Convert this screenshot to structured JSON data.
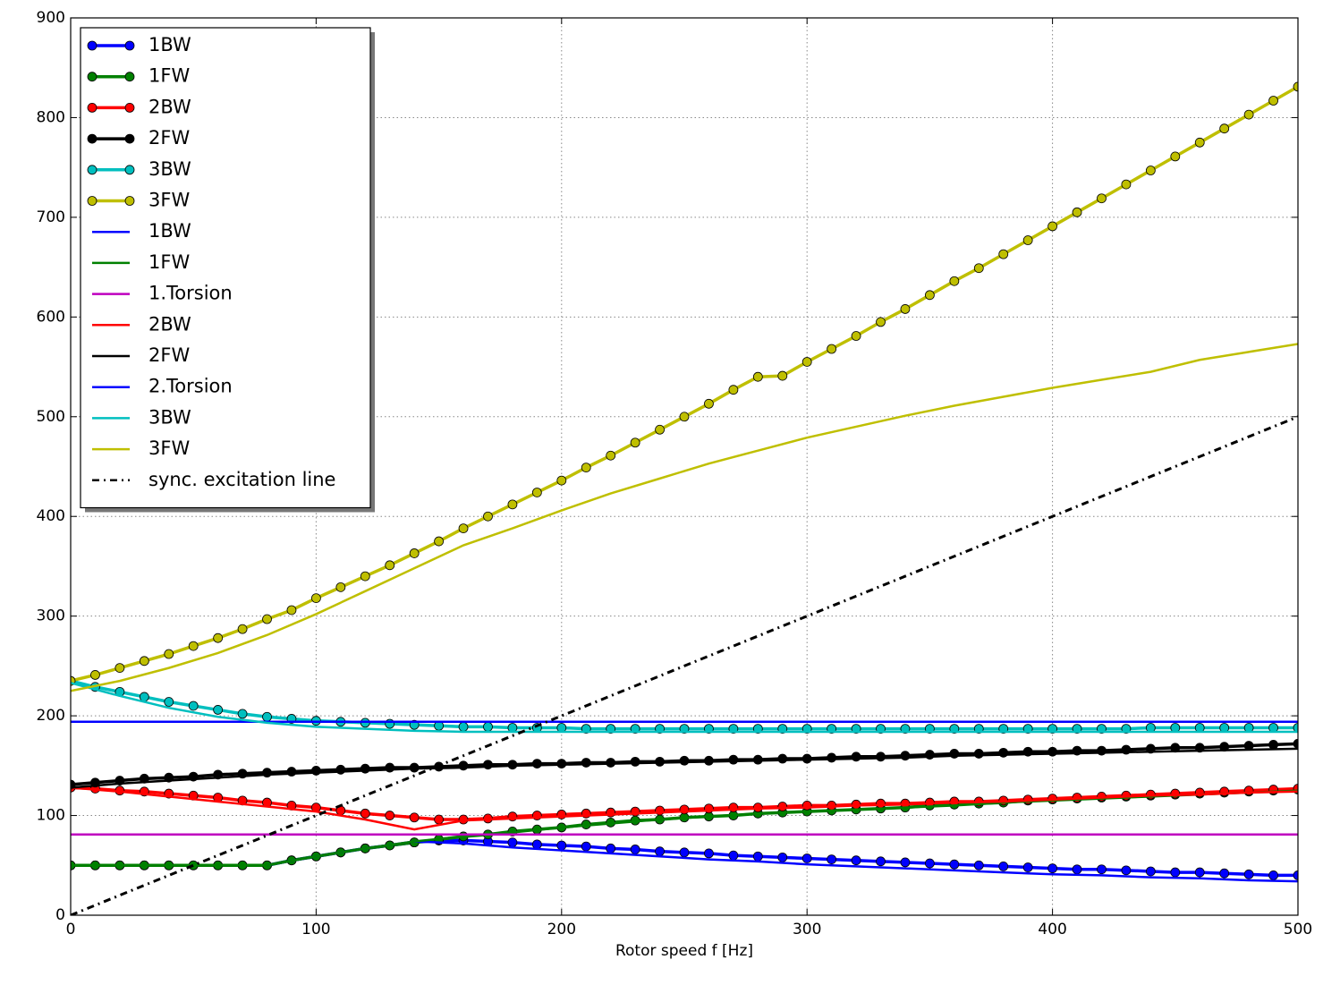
{
  "chart_data": {
    "type": "line",
    "xlabel": "Rotor speed f [Hz]",
    "xlim": [
      0,
      500
    ],
    "ylim": [
      0,
      900
    ],
    "xticks": [
      0,
      100,
      200,
      300,
      400,
      500
    ],
    "yticks": [
      0,
      100,
      200,
      300,
      400,
      500,
      600,
      700,
      800,
      900
    ],
    "grid": true,
    "legend": "upper left",
    "series": [
      {
        "name": "1BW",
        "color": "#0000ff",
        "marker": true,
        "x": [
          0,
          10,
          20,
          30,
          40,
          50,
          60,
          70,
          80,
          90,
          100,
          110,
          120,
          130,
          140,
          150,
          160,
          170,
          180,
          190,
          200,
          210,
          220,
          230,
          240,
          250,
          260,
          270,
          280,
          290,
          300,
          310,
          320,
          330,
          340,
          350,
          360,
          370,
          380,
          390,
          400,
          410,
          420,
          430,
          440,
          450,
          460,
          470,
          480,
          490,
          500
        ],
        "values": [
          50,
          50,
          50,
          50,
          50,
          50,
          50,
          50,
          50,
          55,
          59,
          63,
          67,
          70,
          73,
          75,
          75,
          74,
          73,
          71,
          70,
          69,
          67,
          66,
          64,
          63,
          62,
          60,
          59,
          58,
          57,
          56,
          55,
          54,
          53,
          52,
          51,
          50,
          49,
          48,
          47,
          46,
          46,
          45,
          44,
          43,
          43,
          42,
          41,
          40,
          40
        ]
      },
      {
        "name": "1FW",
        "color": "#008000",
        "marker": true,
        "x": [
          0,
          10,
          20,
          30,
          40,
          50,
          60,
          70,
          80,
          90,
          100,
          110,
          120,
          130,
          140,
          150,
          160,
          170,
          180,
          190,
          200,
          210,
          220,
          230,
          240,
          250,
          260,
          270,
          280,
          290,
          300,
          310,
          320,
          330,
          340,
          350,
          360,
          370,
          380,
          390,
          400,
          410,
          420,
          430,
          440,
          450,
          460,
          470,
          480,
          490,
          500
        ],
        "values": [
          50,
          50,
          50,
          50,
          50,
          50,
          50,
          50,
          50,
          55,
          59,
          63,
          67,
          70,
          73,
          76,
          79,
          81,
          84,
          86,
          88,
          91,
          93,
          95,
          96,
          98,
          99,
          100,
          102,
          103,
          104,
          105,
          106,
          107,
          108,
          110,
          111,
          112,
          113,
          115,
          116,
          117,
          118,
          119,
          120,
          121,
          122,
          123,
          124,
          125,
          126
        ]
      },
      {
        "name": "2BW",
        "color": "#ff0000",
        "marker": true,
        "x": [
          0,
          10,
          20,
          30,
          40,
          50,
          60,
          70,
          80,
          90,
          100,
          110,
          120,
          130,
          140,
          150,
          160,
          170,
          180,
          190,
          200,
          210,
          220,
          230,
          240,
          250,
          260,
          270,
          280,
          290,
          300,
          310,
          320,
          330,
          340,
          350,
          360,
          370,
          380,
          390,
          400,
          410,
          420,
          430,
          440,
          450,
          460,
          470,
          480,
          490,
          500
        ],
        "values": [
          128,
          127,
          125,
          124,
          122,
          120,
          118,
          115,
          113,
          110,
          108,
          105,
          102,
          100,
          98,
          96,
          96,
          97,
          99,
          100,
          101,
          102,
          103,
          104,
          105,
          106,
          107,
          108,
          108,
          109,
          110,
          110,
          111,
          112,
          112,
          113,
          114,
          114,
          115,
          116,
          117,
          118,
          119,
          120,
          121,
          122,
          123,
          124,
          125,
          126,
          127
        ]
      },
      {
        "name": "2FW",
        "color": "#000000",
        "marker": true,
        "x": [
          0,
          10,
          20,
          30,
          40,
          50,
          60,
          70,
          80,
          90,
          100,
          110,
          120,
          130,
          140,
          150,
          160,
          170,
          180,
          190,
          200,
          210,
          220,
          230,
          240,
          250,
          260,
          270,
          280,
          290,
          300,
          310,
          320,
          330,
          340,
          350,
          360,
          370,
          380,
          390,
          400,
          410,
          420,
          430,
          440,
          450,
          460,
          470,
          480,
          490,
          500
        ],
        "values": [
          131,
          133,
          135,
          137,
          138,
          139,
          141,
          142,
          143,
          144,
          145,
          146,
          147,
          148,
          148,
          149,
          150,
          151,
          151,
          152,
          152,
          153,
          153,
          154,
          154,
          155,
          155,
          156,
          156,
          157,
          157,
          158,
          159,
          159,
          160,
          161,
          162,
          162,
          163,
          164,
          164,
          165,
          165,
          166,
          167,
          168,
          168,
          169,
          170,
          171,
          172
        ]
      },
      {
        "name": "3BW",
        "color": "#00bfbf",
        "marker": true,
        "x": [
          0,
          10,
          20,
          30,
          40,
          50,
          60,
          70,
          80,
          90,
          100,
          110,
          120,
          130,
          140,
          150,
          160,
          170,
          180,
          190,
          200,
          210,
          220,
          230,
          240,
          250,
          260,
          270,
          280,
          290,
          300,
          310,
          320,
          330,
          340,
          350,
          360,
          370,
          380,
          390,
          400,
          410,
          420,
          430,
          440,
          450,
          460,
          470,
          480,
          490,
          500
        ],
        "values": [
          235,
          229,
          224,
          219,
          214,
          210,
          206,
          202,
          199,
          197,
          195,
          194,
          193,
          192,
          191,
          190,
          189,
          189,
          188,
          188,
          188,
          187,
          187,
          187,
          187,
          187,
          187,
          187,
          187,
          187,
          187,
          187,
          187,
          187,
          187,
          187,
          187,
          187,
          187,
          187,
          187,
          187,
          187,
          187,
          188,
          188,
          188,
          188,
          188,
          188,
          188
        ]
      },
      {
        "name": "3FW",
        "color": "#bfbf00",
        "marker": true,
        "x": [
          0,
          10,
          20,
          30,
          40,
          50,
          60,
          70,
          80,
          90,
          100,
          110,
          120,
          130,
          140,
          150,
          160,
          170,
          180,
          190,
          200,
          210,
          220,
          230,
          240,
          250,
          260,
          270,
          280,
          290,
          300,
          310,
          320,
          330,
          340,
          350,
          360,
          370,
          380,
          390,
          400,
          410,
          420,
          430,
          440,
          450,
          460,
          470,
          480,
          490,
          500
        ],
        "values": [
          235,
          241,
          248,
          255,
          262,
          270,
          278,
          287,
          297,
          306,
          318,
          329,
          340,
          351,
          363,
          375,
          388,
          400,
          412,
          424,
          436,
          449,
          461,
          474,
          487,
          500,
          513,
          527,
          540,
          541,
          555,
          568,
          581,
          595,
          608,
          622,
          636,
          649,
          663,
          677,
          691,
          705,
          719,
          733,
          747,
          761,
          775,
          789,
          803,
          817,
          831
        ]
      },
      {
        "name": "1BW",
        "color": "#0000ff",
        "marker": false,
        "x": [
          0,
          20,
          40,
          60,
          80,
          100,
          120,
          140,
          160,
          180,
          200,
          220,
          240,
          260,
          280,
          300,
          320,
          340,
          360,
          380,
          400,
          420,
          440,
          460,
          480,
          500
        ],
        "values": [
          50,
          50,
          50,
          50,
          50,
          59,
          67,
          74,
          72,
          68,
          65,
          62,
          59,
          56,
          54,
          51,
          49,
          47,
          45,
          43,
          41,
          40,
          38,
          37,
          35,
          34
        ]
      },
      {
        "name": "1FW",
        "color": "#008000",
        "marker": false,
        "x": [
          0,
          20,
          40,
          60,
          80,
          100,
          120,
          140,
          160,
          180,
          200,
          220,
          240,
          260,
          280,
          300,
          320,
          340,
          360,
          380,
          400,
          420,
          440,
          460,
          480,
          500
        ],
        "values": [
          50,
          50,
          50,
          50,
          50,
          59,
          67,
          74,
          79,
          83,
          88,
          92,
          96,
          99,
          102,
          104,
          106,
          108,
          110,
          113,
          115,
          117,
          119,
          121,
          123,
          125
        ]
      },
      {
        "name": "1.Torsion",
        "color": "#bf00bf",
        "marker": false,
        "x": [
          0,
          500
        ],
        "values": [
          81,
          81
        ]
      },
      {
        "name": "2BW",
        "color": "#ff0000",
        "marker": false,
        "x": [
          0,
          20,
          40,
          60,
          80,
          100,
          120,
          140,
          160,
          180,
          200,
          220,
          240,
          260,
          280,
          300,
          320,
          340,
          360,
          380,
          400,
          420,
          440,
          460,
          480,
          500
        ],
        "values": [
          128,
          124,
          119,
          114,
          109,
          104,
          96,
          86,
          95,
          97,
          99,
          101,
          103,
          105,
          107,
          108,
          110,
          111,
          113,
          114,
          116,
          118,
          120,
          121,
          123,
          124
        ]
      },
      {
        "name": "2FW",
        "color": "#000000",
        "marker": false,
        "x": [
          0,
          20,
          40,
          60,
          80,
          100,
          120,
          140,
          160,
          180,
          200,
          220,
          240,
          260,
          280,
          300,
          320,
          340,
          360,
          380,
          400,
          420,
          440,
          460,
          480,
          500
        ],
        "values": [
          128,
          132,
          135,
          138,
          141,
          143,
          145,
          147,
          148,
          150,
          151,
          152,
          153,
          154,
          155,
          156,
          157,
          158,
          160,
          161,
          162,
          163,
          164,
          165,
          166,
          167
        ]
      },
      {
        "name": "2.Torsion",
        "color": "#0000ff",
        "marker": false,
        "x": [
          0,
          500
        ],
        "values": [
          194,
          194
        ]
      },
      {
        "name": "3BW",
        "color": "#00bfbf",
        "marker": false,
        "x": [
          0,
          20,
          40,
          60,
          80,
          100,
          120,
          140,
          160,
          180,
          200,
          220,
          240,
          260,
          280,
          300,
          320,
          340,
          360,
          380,
          400,
          420,
          440,
          460,
          480,
          500
        ],
        "values": [
          233,
          220,
          208,
          199,
          193,
          189,
          187,
          185,
          184,
          184,
          184,
          184,
          184,
          184,
          184,
          184,
          184,
          184,
          184,
          184,
          184,
          184,
          184,
          184,
          184,
          184
        ]
      },
      {
        "name": "3FW",
        "color": "#bfbf00",
        "marker": false,
        "x": [
          0,
          20,
          40,
          60,
          80,
          100,
          120,
          140,
          160,
          180,
          200,
          220,
          240,
          260,
          280,
          300,
          320,
          340,
          360,
          380,
          400,
          420,
          440,
          460,
          480,
          500
        ],
        "values": [
          225,
          235,
          248,
          263,
          281,
          302,
          325,
          348,
          371,
          388,
          406,
          423,
          438,
          453,
          466,
          479,
          490,
          501,
          511,
          520,
          529,
          537,
          545,
          557,
          565,
          573
        ]
      },
      {
        "name": "sync. excitation line",
        "color": "#000000",
        "marker": false,
        "linestyle": "dashdot",
        "x": [
          0,
          500
        ],
        "values": [
          0,
          500
        ]
      }
    ]
  }
}
